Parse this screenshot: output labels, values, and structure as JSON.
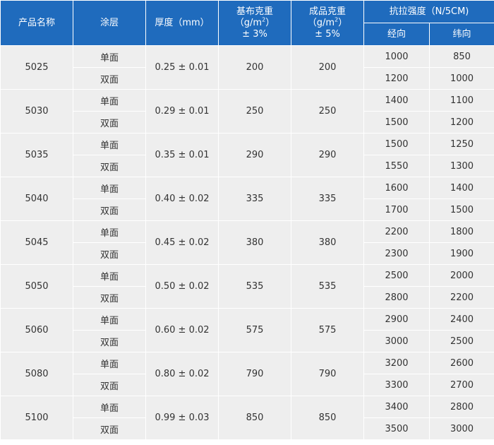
{
  "header": {
    "product_name": "产品名称",
    "coating": "涂层",
    "thickness": "厚度（mm）",
    "base_weight": {
      "line1": "基布克重",
      "line2_pre": "（g/m",
      "line2_sup": "2",
      "line2_post": "）",
      "line3": "± 3%"
    },
    "finished_weight": {
      "line1": "成品克重",
      "line2_pre": "（g/m",
      "line2_sup": "2",
      "line2_post": "）",
      "line3": "± 5%"
    },
    "tensile": "抗拉强度（N/5CM)",
    "warp": "经向",
    "weft": "纬向"
  },
  "rows": [
    {
      "product": "5025",
      "thickness": "0.25 ± 0.01",
      "base": "200",
      "finished": "200",
      "single": {
        "coating": "单面",
        "warp": "1000",
        "weft": "850"
      },
      "double": {
        "coating": "双面",
        "warp": "1200",
        "weft": "1000"
      }
    },
    {
      "product": "5030",
      "thickness": "0.29 ± 0.01",
      "base": "250",
      "finished": "250",
      "single": {
        "coating": "单面",
        "warp": "1400",
        "weft": "1100"
      },
      "double": {
        "coating": "双面",
        "warp": "1500",
        "weft": "1200"
      }
    },
    {
      "product": "5035",
      "thickness": "0.35 ± 0.01",
      "base": "290",
      "finished": "290",
      "single": {
        "coating": "单面",
        "warp": "1500",
        "weft": "1250"
      },
      "double": {
        "coating": "双面",
        "warp": "1550",
        "weft": "1300"
      }
    },
    {
      "product": "5040",
      "thickness": "0.40 ± 0.02",
      "base": "335",
      "finished": "335",
      "single": {
        "coating": "单面",
        "warp": "1600",
        "weft": "1400"
      },
      "double": {
        "coating": "双面",
        "warp": "1700",
        "weft": "1500"
      }
    },
    {
      "product": "5045",
      "thickness": "0.45 ± 0.02",
      "base": "380",
      "finished": "380",
      "single": {
        "coating": "单面",
        "warp": "2200",
        "weft": "1800"
      },
      "double": {
        "coating": "双面",
        "warp": "2300",
        "weft": "1900"
      }
    },
    {
      "product": "5050",
      "thickness": "0.50 ± 0.02",
      "base": "535",
      "finished": "535",
      "single": {
        "coating": "单面",
        "warp": "2500",
        "weft": "2000"
      },
      "double": {
        "coating": "双面",
        "warp": "2800",
        "weft": "2200"
      }
    },
    {
      "product": "5060",
      "thickness": "0.60 ± 0.02",
      "base": "575",
      "finished": "575",
      "single": {
        "coating": "单面",
        "warp": "2900",
        "weft": "2400"
      },
      "double": {
        "coating": "双面",
        "warp": "3000",
        "weft": "2500"
      }
    },
    {
      "product": "5080",
      "thickness": "0.80 ± 0.02",
      "base": "790",
      "finished": "790",
      "single": {
        "coating": "单面",
        "warp": "3200",
        "weft": "2600"
      },
      "double": {
        "coating": "双面",
        "warp": "3300",
        "weft": "2700"
      }
    },
    {
      "product": "5100",
      "thickness": "0.99 ± 0.03",
      "base": "850",
      "finished": "850",
      "single": {
        "coating": "单面",
        "warp": "3400",
        "weft": "2800"
      },
      "double": {
        "coating": "双面",
        "warp": "3500",
        "weft": "3000"
      }
    }
  ]
}
